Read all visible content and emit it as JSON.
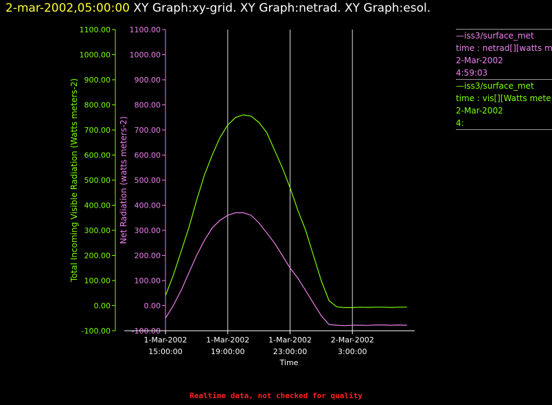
{
  "header": {
    "datetime": "2-mar-2002,05:00:00",
    "titles": "XY Graph:xy-grid.  XY Graph:netrad.  XY Graph:esol."
  },
  "legend": [
    {
      "source": "—iss3/surface_met",
      "desc": "time : netrad[][watts me",
      "date": "2-Mar-2002",
      "time": "4:59:03",
      "color": "#ee82ee"
    },
    {
      "source": "—iss3/surface_met",
      "desc": "time : vis[][Watts mete",
      "date": "2-Mar-2002",
      "time": "4:",
      "color": "#7fff00"
    }
  ],
  "footer": "Realtime data, not checked for quality",
  "chart_data": {
    "type": "line",
    "xlabel": "Time",
    "x_ticks": [
      {
        "date": "1-Mar-2002",
        "time": "15:00:00"
      },
      {
        "date": "1-Mar-2002",
        "time": "19:00:00"
      },
      {
        "date": "1-Mar-2002",
        "time": "23:00:00"
      },
      {
        "date": "2-Mar-2002",
        "time": "3:00:00"
      }
    ],
    "x_range_hours": [
      15,
      31
    ],
    "vertical_gridlines_hours": [
      19,
      23,
      27
    ],
    "grid": true,
    "y_axes": [
      {
        "label": "Total Incoming Visible Radiation (Watts meters-2)",
        "color": "#7fff00",
        "ylim": [
          -100,
          1100
        ],
        "ticks": [
          "-100.00",
          "0.00",
          "100.00",
          "200.00",
          "300.00",
          "400.00",
          "500.00",
          "600.00",
          "700.00",
          "800.00",
          "900.00",
          "1000.00",
          "1100.00"
        ]
      },
      {
        "label": "Net Radiation (watts meters-2)",
        "color": "#ee82ee",
        "ylim": [
          -100,
          1100
        ],
        "ticks": [
          "-100.00",
          "0.00",
          "100.00",
          "200.00",
          "300.00",
          "400.00",
          "500.00",
          "600.00",
          "700.00",
          "800.00",
          "900.00",
          "1000.00",
          "1100.00"
        ]
      }
    ],
    "series": [
      {
        "name": "vis",
        "color": "#7fff00",
        "axis": 0,
        "x": [
          15.0,
          15.5,
          16.0,
          16.5,
          17.0,
          17.5,
          18.0,
          18.5,
          19.0,
          19.5,
          20.0,
          20.5,
          21.0,
          21.5,
          22.0,
          22.5,
          23.0,
          23.5,
          24.0,
          24.5,
          25.0,
          25.5,
          26.0,
          26.5,
          27.0,
          27.5,
          28.0,
          28.5,
          29.0,
          29.5,
          30.0,
          30.5
        ],
        "y": [
          40,
          120,
          215,
          310,
          420,
          520,
          600,
          670,
          720,
          750,
          760,
          755,
          730,
          690,
          620,
          550,
          470,
          380,
          300,
          200,
          100,
          20,
          -5,
          -8,
          -8,
          -6,
          -7,
          -6,
          -6,
          -7,
          -6,
          -6
        ]
      },
      {
        "name": "netrad",
        "color": "#ee82ee",
        "axis": 1,
        "x": [
          15.0,
          15.5,
          16.0,
          16.5,
          17.0,
          17.5,
          18.0,
          18.5,
          19.0,
          19.5,
          20.0,
          20.5,
          21.0,
          21.5,
          22.0,
          22.5,
          23.0,
          23.5,
          24.0,
          24.5,
          25.0,
          25.5,
          26.0,
          26.5,
          27.0,
          27.5,
          28.0,
          28.5,
          29.0,
          29.5,
          30.0,
          30.5
        ],
        "y": [
          -50,
          0,
          60,
          130,
          200,
          260,
          310,
          340,
          360,
          370,
          370,
          360,
          330,
          290,
          250,
          200,
          150,
          110,
          60,
          10,
          -40,
          -75,
          -78,
          -80,
          -78,
          -78,
          -79,
          -77,
          -77,
          -78,
          -77,
          -78
        ]
      }
    ]
  }
}
